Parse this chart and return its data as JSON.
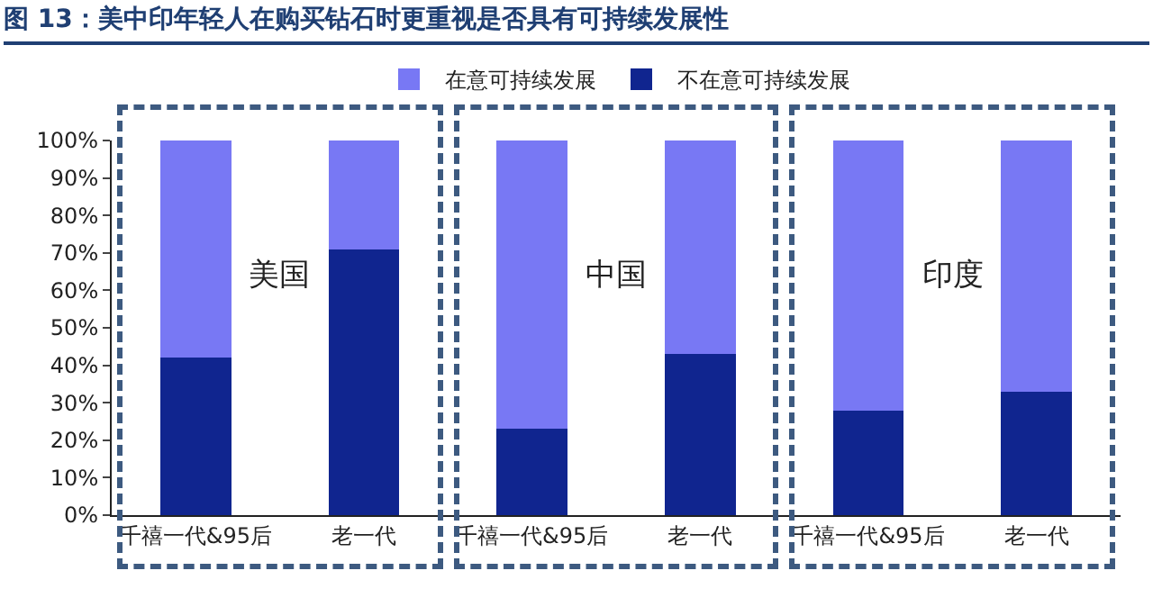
{
  "chart_data": {
    "type": "bar",
    "stacked": true,
    "title": "图 13：美中印年轻人在购买钻石时更重视是否具有可持续发展性",
    "categories": [
      "千禧一代&95后",
      "老一代",
      "千禧一代&95后",
      "老一代",
      "千禧一代&95后",
      "老一代"
    ],
    "series": [
      {
        "name": "不在意可持续发展",
        "color": "#10258f",
        "values": [
          42,
          71,
          23,
          43,
          28,
          33
        ]
      },
      {
        "name": "在意可持续发展",
        "color": "#7878f4",
        "values": [
          58,
          29,
          77,
          57,
          72,
          67
        ]
      }
    ],
    "ylim": [
      0,
      100
    ],
    "yticks": [
      {
        "value": 0,
        "label": "0%"
      },
      {
        "value": 10,
        "label": "10%"
      },
      {
        "value": 20,
        "label": "20%"
      },
      {
        "value": 30,
        "label": "30%"
      },
      {
        "value": 40,
        "label": "40%"
      },
      {
        "value": 50,
        "label": "50%"
      },
      {
        "value": 60,
        "label": "60%"
      },
      {
        "value": 70,
        "label": "70%"
      },
      {
        "value": 80,
        "label": "80%"
      },
      {
        "value": 90,
        "label": "90%"
      },
      {
        "value": 100,
        "label": "100%"
      }
    ],
    "grid": false,
    "legend": "top",
    "annotations": [
      "美国",
      "中国",
      "印度"
    ]
  }
}
